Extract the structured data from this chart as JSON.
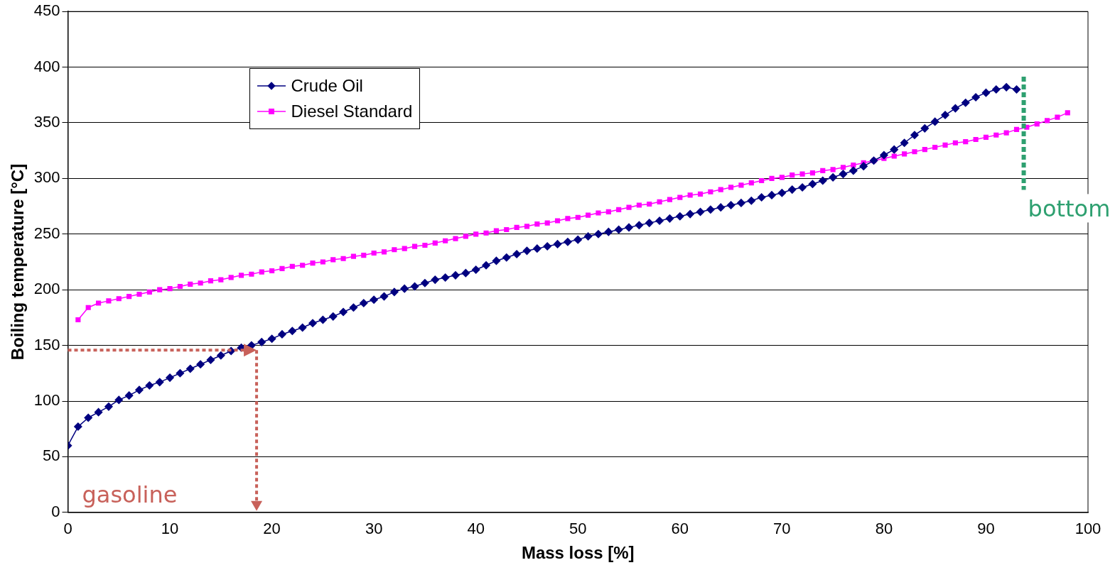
{
  "chart_data": {
    "type": "line",
    "xlabel": "Mass loss [%]",
    "ylabel": "Boiling temperature [°C]",
    "xlim": [
      0,
      100
    ],
    "xticks": [
      0,
      10,
      20,
      30,
      40,
      50,
      60,
      70,
      80,
      90,
      100
    ],
    "ylim": [
      0,
      450
    ],
    "yticks": [
      0,
      50,
      100,
      150,
      200,
      250,
      300,
      350,
      400,
      450
    ],
    "grid": "y",
    "legend": "top left",
    "line_style": "solid",
    "series": [
      {
        "name": "Crude Oil",
        "color": "#000080",
        "marker": "diamond",
        "x": [
          0,
          1,
          2,
          3,
          4,
          5,
          6,
          7,
          8,
          9,
          10,
          11,
          12,
          13,
          14,
          15,
          16,
          17,
          18,
          19,
          20,
          21,
          22,
          23,
          24,
          25,
          26,
          27,
          28,
          29,
          30,
          31,
          32,
          33,
          34,
          35,
          36,
          37,
          38,
          39,
          40,
          41,
          42,
          43,
          44,
          45,
          46,
          47,
          48,
          49,
          50,
          51,
          52,
          53,
          54,
          55,
          56,
          57,
          58,
          59,
          60,
          61,
          62,
          63,
          64,
          65,
          66,
          67,
          68,
          69,
          70,
          71,
          72,
          73,
          74,
          75,
          76,
          77,
          78,
          79,
          80,
          81,
          82,
          83,
          84,
          85,
          86,
          87,
          88,
          89,
          90,
          91,
          92,
          93
        ],
        "values": [
          60,
          77,
          85,
          90,
          95,
          101,
          105,
          110,
          114,
          117,
          121,
          125,
          129,
          133,
          137,
          141,
          145,
          148,
          150,
          153,
          156,
          160,
          163,
          166,
          170,
          173,
          176,
          180,
          184,
          188,
          191,
          194,
          198,
          201,
          203,
          206,
          209,
          211,
          213,
          215,
          218,
          222,
          226,
          229,
          232,
          235,
          237,
          239,
          241,
          243,
          245,
          248,
          250,
          252,
          254,
          256,
          258,
          260,
          262,
          264,
          266,
          268,
          270,
          272,
          274,
          276,
          278,
          280,
          283,
          285,
          287,
          290,
          292,
          295,
          298,
          301,
          304,
          307,
          311,
          316,
          321,
          326,
          332,
          339,
          345,
          351,
          357,
          363,
          368,
          373,
          377,
          380,
          382,
          380
        ]
      },
      {
        "name": "Diesel Standard",
        "color": "#ff00ff",
        "marker": "square",
        "x": [
          1,
          2,
          3,
          4,
          5,
          6,
          7,
          8,
          9,
          10,
          11,
          12,
          13,
          14,
          15,
          16,
          17,
          18,
          19,
          20,
          21,
          22,
          23,
          24,
          25,
          26,
          27,
          28,
          29,
          30,
          31,
          32,
          33,
          34,
          35,
          36,
          37,
          38,
          39,
          40,
          41,
          42,
          43,
          44,
          45,
          46,
          47,
          48,
          49,
          50,
          51,
          52,
          53,
          54,
          55,
          56,
          57,
          58,
          59,
          60,
          61,
          62,
          63,
          64,
          65,
          66,
          67,
          68,
          69,
          70,
          71,
          72,
          73,
          74,
          75,
          76,
          77,
          78,
          79,
          80,
          81,
          82,
          83,
          84,
          85,
          86,
          87,
          88,
          89,
          90,
          91,
          92,
          93,
          94,
          95,
          96,
          97,
          98
        ],
        "values": [
          173,
          184,
          188,
          190,
          192,
          194,
          196,
          198,
          200,
          201,
          203,
          205,
          206,
          208,
          209,
          211,
          213,
          214,
          216,
          217,
          219,
          221,
          222,
          224,
          225,
          227,
          228,
          230,
          231,
          233,
          234,
          236,
          237,
          239,
          240,
          242,
          244,
          246,
          248,
          250,
          251,
          253,
          254,
          256,
          257,
          259,
          260,
          262,
          264,
          265,
          267,
          269,
          270,
          272,
          274,
          276,
          277,
          279,
          281,
          283,
          285,
          286,
          288,
          290,
          292,
          294,
          296,
          298,
          300,
          301,
          303,
          304,
          305,
          307,
          308,
          310,
          312,
          314,
          316,
          318,
          320,
          322,
          324,
          326,
          328,
          330,
          332,
          333,
          335,
          337,
          339,
          341,
          344,
          346,
          349,
          352,
          355,
          359
        ]
      }
    ],
    "annotations": [
      "gasoline",
      "bottom"
    ]
  }
}
